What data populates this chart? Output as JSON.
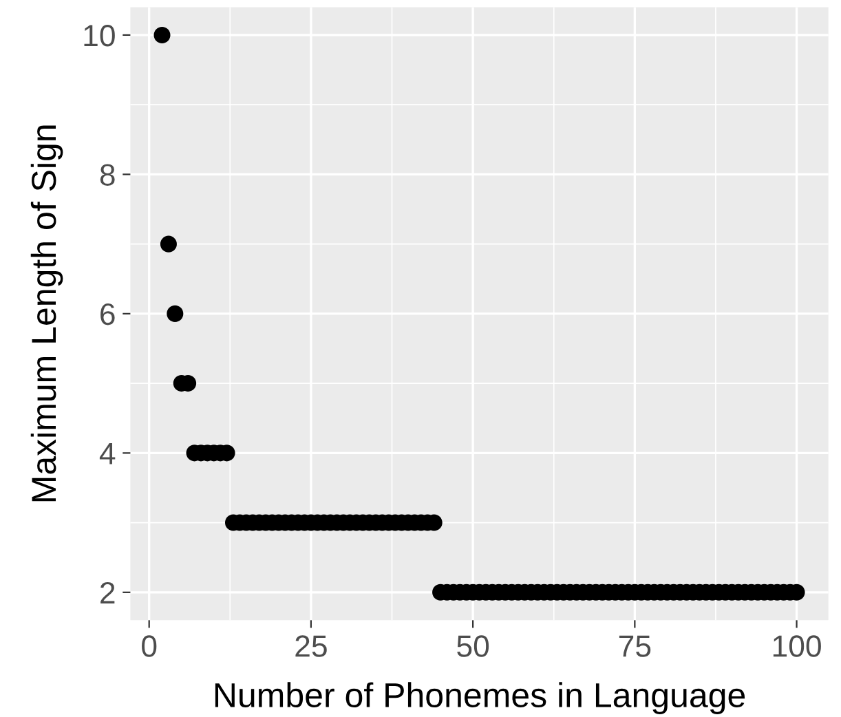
{
  "chart_data": {
    "type": "scatter",
    "xlabel": "Number of Phonemes in Language",
    "ylabel": "Maximum Length of Sign",
    "x": [
      2,
      3,
      4,
      5,
      6,
      7,
      8,
      9,
      10,
      11,
      12,
      13,
      14,
      15,
      16,
      17,
      18,
      19,
      20,
      21,
      22,
      23,
      24,
      25,
      26,
      27,
      28,
      29,
      30,
      31,
      32,
      33,
      34,
      35,
      36,
      37,
      38,
      39,
      40,
      41,
      42,
      43,
      44,
      45,
      46,
      47,
      48,
      49,
      50,
      51,
      52,
      53,
      54,
      55,
      56,
      57,
      58,
      59,
      60,
      61,
      62,
      63,
      64,
      65,
      66,
      67,
      68,
      69,
      70,
      71,
      72,
      73,
      74,
      75,
      76,
      77,
      78,
      79,
      80,
      81,
      82,
      83,
      84,
      85,
      86,
      87,
      88,
      89,
      90,
      91,
      92,
      93,
      94,
      95,
      96,
      97,
      98,
      99,
      100
    ],
    "series": [
      {
        "color": "#000000",
        "values": [
          10,
          7,
          6,
          5,
          5,
          4,
          4,
          4,
          4,
          4,
          4,
          3,
          3,
          3,
          3,
          3,
          3,
          3,
          3,
          3,
          3,
          3,
          3,
          3,
          3,
          3,
          3,
          3,
          3,
          3,
          3,
          3,
          3,
          3,
          3,
          3,
          3,
          3,
          3,
          3,
          3,
          3,
          3,
          2,
          2,
          2,
          2,
          2,
          2,
          2,
          2,
          2,
          2,
          2,
          2,
          2,
          2,
          2,
          2,
          2,
          2,
          2,
          2,
          2,
          2,
          2,
          2,
          2,
          2,
          2,
          2,
          2,
          2,
          2,
          2,
          2,
          2,
          2,
          2,
          2,
          2,
          2,
          2,
          2,
          2,
          2,
          2,
          2,
          2,
          2,
          2,
          2,
          2,
          2,
          2,
          2,
          2,
          2,
          2
        ]
      }
    ],
    "xlim": [
      -2.9,
      104.9
    ],
    "ylim": [
      1.6,
      10.4
    ],
    "xticks": [
      0,
      25,
      50,
      75,
      100
    ],
    "yticks": [
      2,
      4,
      6,
      8,
      10
    ],
    "grid": true,
    "marker": "circle"
  }
}
